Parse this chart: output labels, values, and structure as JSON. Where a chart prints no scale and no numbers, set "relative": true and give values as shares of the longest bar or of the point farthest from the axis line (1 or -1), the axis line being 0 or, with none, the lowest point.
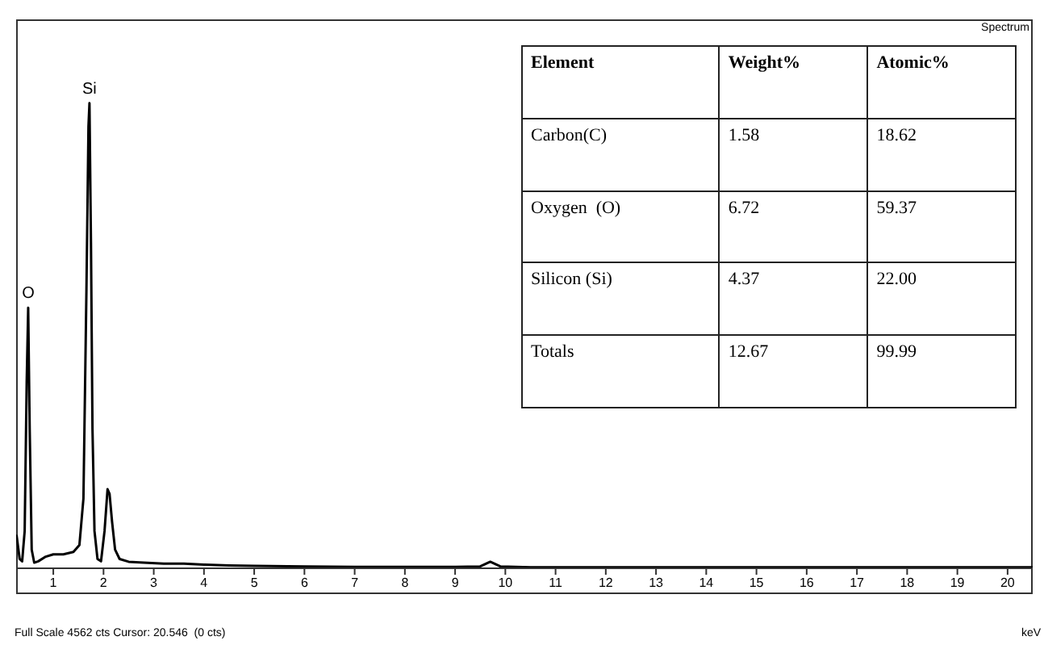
{
  "chart_data": {
    "type": "line",
    "relative": true,
    "xlabel": "keV",
    "color": "#000000",
    "marker": "none",
    "xlim": [
      0.26,
      20.5
    ],
    "xticks": [
      1,
      2,
      3,
      4,
      5,
      6,
      7,
      8,
      9,
      10,
      11,
      12,
      13,
      14,
      15,
      16,
      17,
      18,
      19,
      20
    ],
    "x": [
      0.27,
      0.33,
      0.38,
      0.43,
      0.47,
      0.5,
      0.53,
      0.57,
      0.62,
      0.7,
      0.85,
      1.0,
      1.2,
      1.4,
      1.52,
      1.6,
      1.66,
      1.7,
      1.72,
      1.75,
      1.78,
      1.82,
      1.88,
      1.95,
      2.02,
      2.08,
      2.12,
      2.17,
      2.23,
      2.32,
      2.5,
      2.8,
      3.2,
      3.6,
      4.0,
      4.5,
      5,
      6,
      7,
      8,
      9,
      9.5,
      9.7,
      9.9,
      10.5,
      12,
      14,
      16,
      18,
      20.5
    ],
    "values": [
      0.07,
      0.02,
      0.015,
      0.08,
      0.4,
      0.56,
      0.3,
      0.04,
      0.012,
      0.015,
      0.025,
      0.03,
      0.03,
      0.035,
      0.05,
      0.15,
      0.6,
      0.95,
      1,
      0.7,
      0.3,
      0.08,
      0.02,
      0.015,
      0.08,
      0.17,
      0.16,
      0.1,
      0.04,
      0.02,
      0.014,
      0.012,
      0.01,
      0.01,
      0.008,
      0.006,
      0.005,
      0.004,
      0.003,
      0.003,
      0.003,
      0.004,
      0.014,
      0.004,
      0.002,
      0.002,
      0.002,
      0.002,
      0.002,
      0.002
    ],
    "annotations": [
      {
        "text": "O",
        "x": 0.5,
        "y": 0.56
      },
      {
        "text": "Si",
        "x": 1.72,
        "y": 1
      },
      "Spectrum",
      "Full Scale 4562 cts Cursor: 20.546  (0 cts)",
      "Element",
      "Weight%",
      "Atomic%",
      "Carbon(C)",
      "1.58",
      "18.62",
      "Oxygen  (O)",
      "6.72",
      "59.37",
      "Silicon (Si)",
      "4.37",
      "22.00",
      "Totals",
      "12.67",
      "99.99"
    ]
  }
}
